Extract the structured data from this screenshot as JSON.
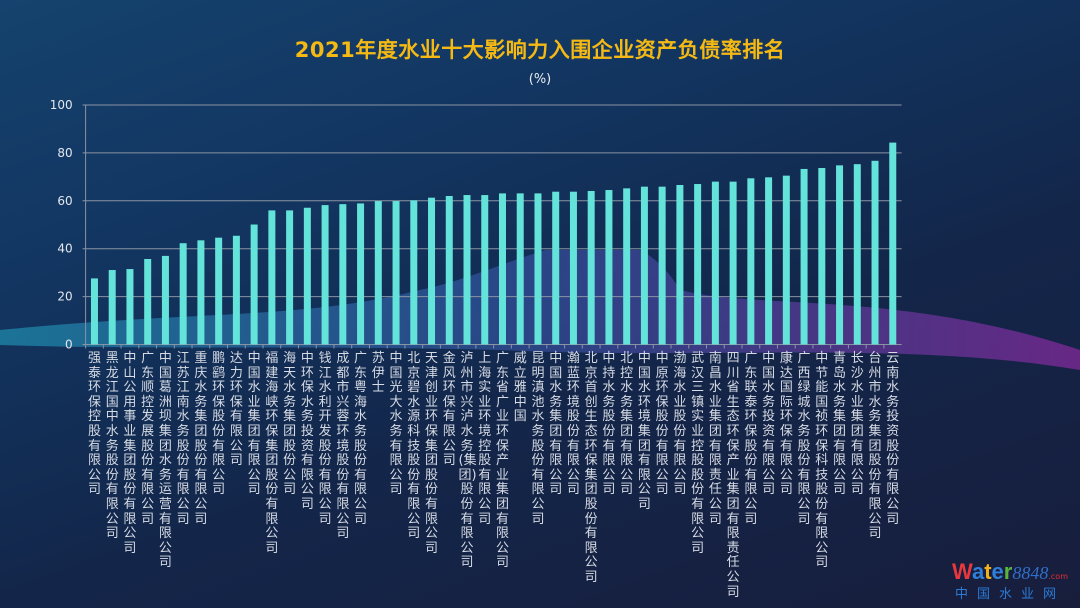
{
  "chart_data": {
    "type": "bar",
    "title": "2021年度水业十大影响力入围企业资产负债率排名",
    "unit_label": "(%)",
    "xlabel": "",
    "ylabel": "",
    "ylim": [
      0,
      100
    ],
    "yticks": [
      0,
      20,
      40,
      60,
      80,
      100
    ],
    "grid": true,
    "legend": "none",
    "bar_color": "#64e3da",
    "categories": [
      "强泰环保控股有限公司",
      "黑龙江国中水务股份有限公司",
      "中山公用事业集团股份有限公司",
      "广东顺控发展股份有限公司",
      "中国葛洲坝集团水务运营有限公司",
      "江苏江南水务股份有限公司",
      "重庆水务集团股份有限公司",
      "鹏鹞环保股份有限公司",
      "达力环保有限公司",
      "中国水业集团有限公司",
      "福建海峡环保集团股份有限公司",
      "海天水务集团股份公司",
      "中环保水务投资有限公司",
      "钱江水利开发股份有限公司",
      "成都市兴蓉环境股份有限公司",
      "广东粤海水务股份有限公司",
      "苏伊士",
      "中国光大水务有限公司",
      "北京碧水源科技股份有限公司",
      "天津创业环保集团股份有限公司",
      "金风环保有限公司",
      "泸州市兴泸水务(集团)股份有限公司",
      "上海实业环境控股有限公司",
      "广东省广业环保产业集团有限公司",
      "威立雅中国",
      "昆明滇池水务股份有限公司",
      "中国水务集团有限公司",
      "瀚蓝环境股份有限公司",
      "北京首创生态环保集团股份有限公司",
      "中持水务股份有限公司",
      "北控水务集团有限公司",
      "中国水环境集团有限公司",
      "中原环保股份有限公司",
      "渤海水业股份有限公司",
      "武汉三镇实业控股股份有限公司",
      "南昌水业集团有限责任公司",
      "四川省生态环保产业集团有限责任公司",
      "广东联泰环保股份有限公司",
      "中国水务投资有限公司",
      "康达国际环保有限公司",
      "广西绿城水务股份有限公司",
      "中节能国祯环保科技股份有限公司",
      "青岛水务集团有限公司",
      "长沙水业集团有限公司",
      "台州市水务集团股份有限公司",
      "云南水务投资股份有限公司"
    ],
    "values": [
      27.6,
      31.1,
      31.5,
      35.7,
      37.0,
      42.3,
      43.5,
      44.6,
      45.4,
      50.1,
      56.0,
      56.0,
      57.1,
      58.2,
      58.6,
      58.9,
      59.9,
      59.9,
      60.2,
      61.3,
      62.0,
      62.4,
      62.4,
      63.1,
      63.1,
      63.1,
      63.8,
      63.8,
      64.1,
      64.5,
      65.2,
      65.9,
      65.9,
      66.6,
      67.0,
      68.0,
      68.0,
      69.4,
      69.8,
      70.5,
      73.3,
      73.7,
      74.8,
      75.3,
      76.7,
      84.3
    ]
  },
  "watermark": {
    "brand": "Water",
    "number": "8848",
    "domain": ".com",
    "cn": "中国水业网"
  }
}
